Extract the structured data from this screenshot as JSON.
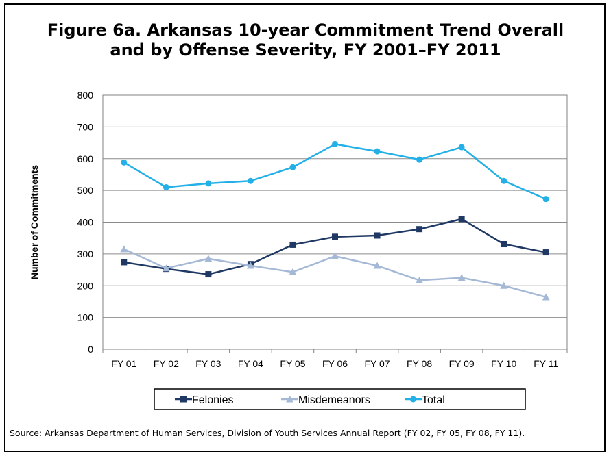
{
  "title_line1": "Figure 6a. Arkansas 10-year Commitment Trend Overall",
  "title_line2": "and by Offense Severity, FY 2001–FY 2011",
  "source": "Source:  Arkansas Department of  Human Services,  Division of Youth Services Annual Report (FY 02, FY 05, FY 08, FY 11).",
  "chart_data": {
    "type": "line",
    "title": "Figure 6a. Arkansas 10-year Commitment Trend Overall and by Offense Severity, FY 2001–FY 2011",
    "xlabel": "",
    "ylabel": "Number of Commitments",
    "ylim": [
      0,
      800
    ],
    "yticks": [
      0,
      100,
      200,
      300,
      400,
      500,
      600,
      700,
      800
    ],
    "grid": true,
    "legend_position": "bottom",
    "categories": [
      "FY 01",
      "FY 02",
      "FY 03",
      "FY 04",
      "FY 05",
      "FY 06",
      "FY 07",
      "FY 08",
      "FY 09",
      "FY 10",
      "FY 11"
    ],
    "series": [
      {
        "name": "Felonies",
        "color": "#1f3864",
        "marker": "square",
        "values": [
          274,
          253,
          236,
          268,
          329,
          354,
          358,
          378,
          410,
          331,
          305
        ]
      },
      {
        "name": "Misdemeanors",
        "color": "#a5b9d6",
        "marker": "triangle",
        "values": [
          315,
          255,
          285,
          263,
          243,
          293,
          263,
          217,
          225,
          200,
          164
        ]
      },
      {
        "name": "Total",
        "color": "#23b0e6",
        "marker": "circle",
        "values": [
          588,
          510,
          522,
          530,
          573,
          646,
          623,
          597,
          636,
          530,
          473
        ]
      }
    ]
  }
}
